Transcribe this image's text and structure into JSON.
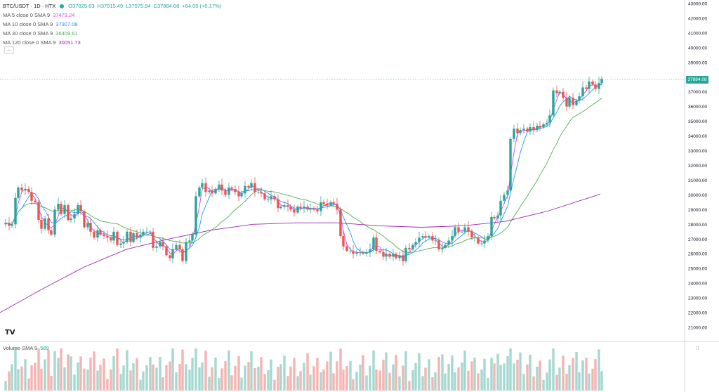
{
  "header": {
    "symbol": "BTC/USDT · 1D · HTX",
    "open": "O37825.63",
    "high": "H37915.49",
    "low": "L37575.94",
    "close": "C37884.08",
    "change": "+64.05 (+0.17%)"
  },
  "indicators": [
    {
      "label": "MA 5 close 0 SMA 9",
      "value": "37473.24",
      "color": "#e040fb"
    },
    {
      "label": "MA 10 close 0 SMA 9",
      "value": "37307.08",
      "color": "#2196f3"
    },
    {
      "label": "MA 30 close 0 SMA 9",
      "value": "36409.61",
      "color": "#4caf50"
    },
    {
      "label": "MA 120 close 0 SMA 9",
      "value": "30051.73",
      "color": "#9c27b0"
    }
  ],
  "collapse_icon": "chevron-up-icon",
  "volume_legend": {
    "label": "Volume SMA 9",
    "value": "589"
  },
  "last_price_tag": "37884.08",
  "colors": {
    "up": "#26a69a",
    "down": "#ef5350",
    "up_vol": "#a5d8cf",
    "down_vol": "#f5b3b1"
  },
  "chart_data": {
    "type": "candlestick",
    "y_axis": {
      "min": 21000,
      "max": 43000,
      "ticks": [
        "43000.00",
        "42000.00",
        "41000.00",
        "40000.00",
        "39000.00",
        "38000.00",
        "37000.00",
        "36000.00",
        "35000.00",
        "34000.00",
        "33000.00",
        "32000.00",
        "31000.00",
        "30000.00",
        "29000.00",
        "28000.00",
        "27000.00",
        "26000.00",
        "25000.00",
        "24000.00",
        "23000.00",
        "22000.00",
        "21000.00"
      ]
    },
    "close_path": [
      [
        0,
        28000
      ],
      [
        6,
        28100
      ],
      [
        11,
        27900
      ],
      [
        15,
        28000
      ],
      [
        20,
        29800
      ],
      [
        24,
        30500
      ],
      [
        29,
        30300
      ],
      [
        34,
        30400
      ],
      [
        39,
        30200
      ],
      [
        43,
        29600
      ],
      [
        48,
        29500
      ],
      [
        53,
        28300
      ],
      [
        57,
        27700
      ],
      [
        62,
        28400
      ],
      [
        67,
        27600
      ],
      [
        71,
        27300
      ],
      [
        76,
        29000
      ],
      [
        81,
        29400
      ],
      [
        85,
        28700
      ],
      [
        90,
        29300
      ],
      [
        95,
        28300
      ],
      [
        99,
        28400
      ],
      [
        104,
        28700
      ],
      [
        109,
        29300
      ],
      [
        113,
        28900
      ],
      [
        118,
        27800
      ],
      [
        123,
        28100
      ],
      [
        127,
        27500
      ],
      [
        132,
        27100
      ],
      [
        137,
        27600
      ],
      [
        141,
        27300
      ],
      [
        146,
        27200
      ],
      [
        151,
        27100
      ],
      [
        156,
        26900
      ],
      [
        160,
        27500
      ],
      [
        165,
        26600
      ],
      [
        170,
        26700
      ],
      [
        174,
        26800
      ],
      [
        179,
        27500
      ],
      [
        184,
        26800
      ],
      [
        188,
        27400
      ],
      [
        193,
        27100
      ],
      [
        198,
        27300
      ],
      [
        202,
        27500
      ],
      [
        207,
        27500
      ],
      [
        212,
        27500
      ],
      [
        216,
        26400
      ],
      [
        221,
        26500
      ],
      [
        226,
        26800
      ],
      [
        230,
        26500
      ],
      [
        235,
        25900
      ],
      [
        240,
        25700
      ],
      [
        244,
        26300
      ],
      [
        249,
        26600
      ],
      [
        254,
        26300
      ],
      [
        258,
        25500
      ],
      [
        263,
        26800
      ],
      [
        268,
        26900
      ],
      [
        272,
        27300
      ],
      [
        277,
        29900
      ],
      [
        282,
        30500
      ],
      [
        286,
        30800
      ],
      [
        291,
        30200
      ],
      [
        296,
        30300
      ],
      [
        300,
        30100
      ],
      [
        305,
        30400
      ],
      [
        310,
        30700
      ],
      [
        314,
        30300
      ],
      [
        319,
        30000
      ],
      [
        324,
        30500
      ],
      [
        328,
        30400
      ],
      [
        333,
        30200
      ],
      [
        338,
        29900
      ],
      [
        342,
        30100
      ],
      [
        347,
        30600
      ],
      [
        352,
        30500
      ],
      [
        356,
        30800
      ],
      [
        361,
        30200
      ],
      [
        366,
        30200
      ],
      [
        370,
        30100
      ],
      [
        375,
        29700
      ],
      [
        380,
        29700
      ],
      [
        384,
        29900
      ],
      [
        389,
        29700
      ],
      [
        394,
        29100
      ],
      [
        398,
        29200
      ],
      [
        403,
        29300
      ],
      [
        408,
        29200
      ],
      [
        412,
        29000
      ],
      [
        417,
        28800
      ],
      [
        422,
        29200
      ],
      [
        426,
        29100
      ],
      [
        431,
        29200
      ],
      [
        436,
        29000
      ],
      [
        440,
        29100
      ],
      [
        445,
        29000
      ],
      [
        450,
        28900
      ],
      [
        455,
        29500
      ],
      [
        459,
        29400
      ],
      [
        464,
        29300
      ],
      [
        469,
        29500
      ],
      [
        473,
        29400
      ],
      [
        478,
        29000
      ],
      [
        483,
        27200
      ],
      [
        487,
        26500
      ],
      [
        492,
        26200
      ],
      [
        497,
        26200
      ],
      [
        501,
        26000
      ],
      [
        506,
        26100
      ],
      [
        511,
        26100
      ],
      [
        515,
        26000
      ],
      [
        520,
        26100
      ],
      [
        525,
        26300
      ],
      [
        530,
        27100
      ],
      [
        534,
        26200
      ],
      [
        539,
        26100
      ],
      [
        544,
        25800
      ],
      [
        548,
        26000
      ],
      [
        553,
        25800
      ],
      [
        558,
        26000
      ],
      [
        562,
        25700
      ],
      [
        567,
        25900
      ],
      [
        572,
        25500
      ],
      [
        576,
        26400
      ],
      [
        581,
        26300
      ],
      [
        586,
        26600
      ],
      [
        590,
        26800
      ],
      [
        595,
        27100
      ],
      [
        600,
        27200
      ],
      [
        604,
        27100
      ],
      [
        609,
        27200
      ],
      [
        614,
        26900
      ],
      [
        618,
        26900
      ],
      [
        623,
        26300
      ],
      [
        628,
        26400
      ],
      [
        632,
        26600
      ],
      [
        637,
        26900
      ],
      [
        642,
        27200
      ],
      [
        646,
        27800
      ],
      [
        651,
        27500
      ],
      [
        656,
        27500
      ],
      [
        660,
        27800
      ],
      [
        665,
        27500
      ],
      [
        670,
        27100
      ],
      [
        674,
        27100
      ],
      [
        679,
        26700
      ],
      [
        684,
        26700
      ],
      [
        688,
        26900
      ],
      [
        693,
        27200
      ],
      [
        698,
        28500
      ],
      [
        702,
        28400
      ],
      [
        707,
        28600
      ],
      [
        711,
        29600
      ],
      [
        716,
        30000
      ],
      [
        721,
        30300
      ],
      [
        725,
        33800
      ],
      [
        730,
        34500
      ],
      [
        735,
        34200
      ],
      [
        739,
        34400
      ],
      [
        744,
        34500
      ],
      [
        749,
        34300
      ],
      [
        753,
        34600
      ],
      [
        758,
        34400
      ],
      [
        763,
        34700
      ],
      [
        767,
        34600
      ],
      [
        772,
        34800
      ],
      [
        777,
        34900
      ],
      [
        781,
        35400
      ],
      [
        786,
        37100
      ],
      [
        791,
        36900
      ],
      [
        795,
        37000
      ],
      [
        800,
        36600
      ],
      [
        805,
        36000
      ],
      [
        809,
        36600
      ],
      [
        814,
        36100
      ],
      [
        819,
        36400
      ],
      [
        823,
        36700
      ],
      [
        828,
        37300
      ],
      [
        833,
        37200
      ],
      [
        837,
        37700
      ],
      [
        842,
        37500
      ],
      [
        846,
        37200
      ],
      [
        851,
        37600
      ],
      [
        855,
        37884
      ]
    ],
    "ma5_last": 37473.24,
    "ma10_last": 37307.08,
    "ma30_last": 36409.61,
    "ma120_last": 30051.73
  }
}
